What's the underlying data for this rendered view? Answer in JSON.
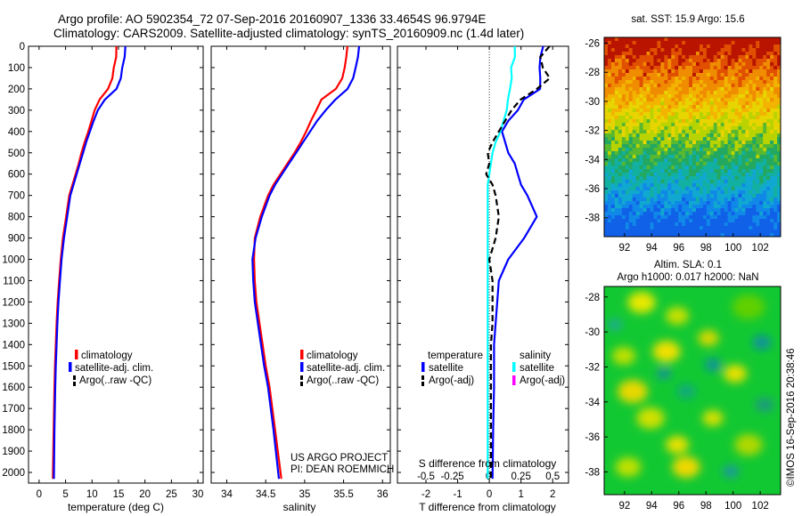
{
  "title": {
    "line1": "Argo profile: AO 5902354_72 07-Sep-2016 20160907_1336 33.4654S 96.9794E",
    "line2": "Climatology: CARS2009. Satellite-adjusted climatology: synTS_20160909.nc (1.4d later)"
  },
  "colors": {
    "climatology": "#ff0000",
    "satellite": "#0000ff",
    "argo": "#000000",
    "salinity_satellite": "#00ffff",
    "salinity_argo": "#ff00ff"
  },
  "project_note": {
    "line1": "US ARGO PROJECT",
    "line2": "PI: DEAN ROEMMICH"
  },
  "timestamp": "©IMOS 16-Sep-2016 20:38:46",
  "depth_ticks": [
    "0",
    "100",
    "200",
    "300",
    "400",
    "500",
    "600",
    "700",
    "800",
    "900",
    "1000",
    "1100",
    "1200",
    "1300",
    "1400",
    "1500",
    "1600",
    "1700",
    "1800",
    "1900",
    "2000"
  ],
  "chart_data": [
    {
      "type": "line",
      "id": "temperature",
      "xlabel": "temperature (deg C)",
      "xlim": [
        -2,
        31
      ],
      "ylim": [
        0,
        2050
      ],
      "y_reversed": true,
      "xticks": [
        0,
        5,
        10,
        15,
        20,
        25,
        30
      ],
      "legend": [
        "climatology",
        "satellite-adj. clim.",
        "Argo(..raw -QC)"
      ],
      "series": [
        {
          "name": "climatology",
          "color": "#ff0000",
          "x": [
            14.6,
            14.5,
            14.2,
            13.8,
            13.0,
            11.5,
            10.5,
            9.9,
            9.3,
            8.6,
            8.0,
            7.5,
            6.9,
            6.3,
            5.7,
            5.1,
            4.5,
            4.1,
            3.8,
            3.5,
            3.3,
            3.15,
            3.0,
            2.9,
            2.75,
            2.6
          ],
          "y": [
            0,
            50,
            100,
            150,
            200,
            250,
            300,
            350,
            400,
            450,
            500,
            550,
            600,
            650,
            700,
            800,
            900,
            1000,
            1100,
            1200,
            1300,
            1400,
            1500,
            1600,
            1800,
            2030
          ]
        },
        {
          "name": "satellite-adj. clim.",
          "color": "#0000ff",
          "x": [
            16.3,
            16.1,
            15.8,
            15.4,
            14.6,
            12.5,
            11.1,
            10.3,
            9.6,
            8.9,
            8.3,
            7.7,
            7.1,
            6.5,
            5.9,
            5.3,
            4.7,
            4.25,
            3.95,
            3.65,
            3.45,
            3.3,
            3.15,
            3.05,
            2.9,
            2.8
          ],
          "y": [
            0,
            50,
            100,
            150,
            200,
            250,
            300,
            350,
            400,
            450,
            500,
            550,
            600,
            650,
            700,
            800,
            900,
            1000,
            1100,
            1200,
            1300,
            1400,
            1500,
            1600,
            1800,
            2030
          ]
        }
      ]
    },
    {
      "type": "line",
      "id": "salinity",
      "xlabel": "salinity",
      "xlim": [
        33.8,
        36.1
      ],
      "ylim": [
        0,
        2050
      ],
      "y_reversed": true,
      "xticks": [
        34,
        34.5,
        35,
        35.5,
        36
      ],
      "xticklabels": [
        "34",
        "34.5",
        "35",
        "35.5",
        "36"
      ],
      "legend": [
        "climatology",
        "satellite-adj. clim.",
        "Argo(..raw -QC)"
      ],
      "series": [
        {
          "name": "climatology",
          "color": "#ff0000",
          "x": [
            35.55,
            35.53,
            35.52,
            35.48,
            35.4,
            35.22,
            35.15,
            35.08,
            35.02,
            34.95,
            34.87,
            34.78,
            34.69,
            34.6,
            34.53,
            34.43,
            34.36,
            34.35,
            34.36,
            34.38,
            34.42,
            34.46,
            34.5,
            34.55,
            34.62,
            34.7
          ],
          "y": [
            0,
            50,
            100,
            150,
            200,
            250,
            300,
            350,
            400,
            450,
            500,
            550,
            600,
            650,
            700,
            800,
            900,
            1000,
            1100,
            1200,
            1300,
            1400,
            1500,
            1600,
            1800,
            2030
          ]
        },
        {
          "name": "satellite-adj. clim.",
          "color": "#0000ff",
          "x": [
            35.7,
            35.68,
            35.66,
            35.62,
            35.55,
            35.4,
            35.27,
            35.16,
            35.07,
            34.98,
            34.89,
            34.8,
            34.71,
            34.62,
            34.55,
            34.45,
            34.37,
            34.33,
            34.34,
            34.36,
            34.4,
            34.44,
            34.48,
            34.53,
            34.6,
            34.67
          ],
          "y": [
            0,
            50,
            100,
            150,
            200,
            250,
            300,
            350,
            400,
            450,
            500,
            550,
            600,
            650,
            700,
            800,
            900,
            1000,
            1100,
            1200,
            1300,
            1400,
            1500,
            1600,
            1800,
            2030
          ]
        }
      ]
    },
    {
      "type": "line",
      "id": "difference",
      "xlabel": "T difference from climatology",
      "xlabel_top": "S difference from climatology",
      "xlim": [
        -2.9,
        2.5
      ],
      "ylim": [
        0,
        2050
      ],
      "y_reversed": true,
      "xticks": [
        -2,
        -1,
        0,
        1,
        2
      ],
      "s_xticklabels": [
        "-0.5",
        "-0.25",
        "0",
        "0.25",
        "0.5"
      ],
      "legend_headers": [
        "temperature",
        "salinity"
      ],
      "legend_temperature": [
        "satellite",
        "Argo(-adj)"
      ],
      "legend_salinity": [
        "satellite",
        "Argo(-adj)"
      ],
      "series": [
        {
          "name": "temperature satellite",
          "color": "#0000ff",
          "x": [
            1.7,
            1.6,
            1.6,
            1.6,
            1.6,
            1.1,
            0.9,
            0.6,
            0.4,
            0.5,
            0.6,
            0.8,
            0.9,
            1.0,
            1.2,
            1.5,
            1.1,
            0.6,
            0.3,
            0.25,
            0.2,
            0.15,
            0.15,
            0.15,
            0.12,
            0.1
          ],
          "y": [
            0,
            50,
            100,
            150,
            200,
            250,
            300,
            350,
            400,
            450,
            500,
            550,
            600,
            650,
            700,
            800,
            900,
            1000,
            1100,
            1200,
            1300,
            1400,
            1500,
            1600,
            1800,
            2030
          ]
        },
        {
          "name": "salinity satellite",
          "color": "#00ffff",
          "x": [
            0.8,
            0.8,
            0.7,
            0.7,
            0.65,
            0.6,
            0.55,
            0.45,
            0.35,
            0.2,
            0.1,
            0.05,
            0.0,
            -0.05,
            -0.05,
            -0.05,
            -0.05,
            -0.05,
            -0.05,
            -0.05,
            -0.05,
            -0.05,
            -0.05,
            -0.05,
            -0.05,
            -0.05
          ],
          "y": [
            0,
            50,
            100,
            150,
            200,
            250,
            300,
            350,
            400,
            450,
            500,
            550,
            600,
            650,
            700,
            800,
            900,
            1000,
            1100,
            1200,
            1300,
            1400,
            1500,
            1600,
            1800,
            2030
          ]
        },
        {
          "name": "temperature Argo(-adj)",
          "color": "#000000",
          "x": [
            1.9,
            1.6,
            1.7,
            1.9,
            1.5,
            1.0,
            0.7,
            0.5,
            0.3,
            0.1,
            -0.05,
            0.0,
            -0.1,
            0.1,
            0.2,
            0.3,
            0.2,
            0.0,
            0.1,
            0.1,
            0.1,
            0.05,
            0.05,
            0.05,
            0.05,
            0.05
          ],
          "y": [
            0,
            50,
            100,
            150,
            200,
            250,
            300,
            350,
            400,
            450,
            500,
            550,
            600,
            650,
            700,
            800,
            900,
            1000,
            1100,
            1200,
            1300,
            1400,
            1500,
            1600,
            1800,
            2030
          ]
        }
      ]
    },
    {
      "type": "heatmap",
      "id": "sst_map",
      "title": "sat. SST: 15.9 Argo: 15.6",
      "xlim": [
        90.5,
        103.5
      ],
      "ylim": [
        -39.3,
        -25.6
      ],
      "xticks": [
        92,
        94,
        96,
        98,
        100,
        102
      ],
      "yticks": [
        -26,
        -28,
        -30,
        -32,
        -34,
        -36,
        -38
      ]
    },
    {
      "type": "heatmap",
      "id": "sla_map",
      "title_line1": "Altim. SLA: 0.1",
      "title_line2": "Argo h1000: 0.017 h2000: NaN",
      "xlim": [
        90.5,
        103.5
      ],
      "ylim": [
        -39.3,
        -27.4
      ],
      "xticks": [
        92,
        94,
        96,
        98,
        100,
        102
      ],
      "yticks": [
        -28,
        -30,
        -32,
        -34,
        -36,
        -38
      ]
    }
  ]
}
